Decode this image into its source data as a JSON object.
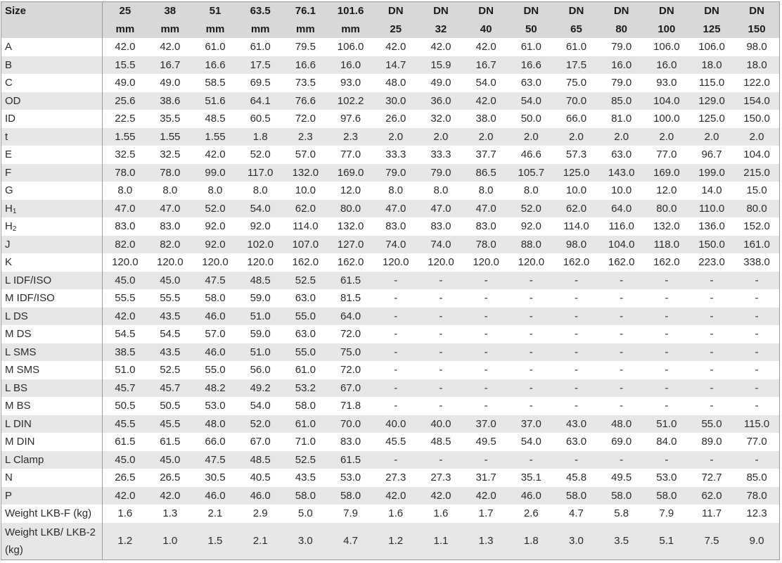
{
  "table": {
    "size_label": "Size",
    "header_top": [
      "25",
      "38",
      "51",
      "63.5",
      "76.1",
      "101.6",
      "DN",
      "DN",
      "DN",
      "DN",
      "DN",
      "DN",
      "DN",
      "DN",
      "DN"
    ],
    "header_bottom": [
      "mm",
      "mm",
      "mm",
      "mm",
      "mm",
      "mm",
      "25",
      "32",
      "40",
      "50",
      "65",
      "80",
      "100",
      "125",
      "150"
    ],
    "rows": [
      {
        "label": "A",
        "values": [
          "42.0",
          "42.0",
          "61.0",
          "61.0",
          "79.5",
          "106.0",
          "42.0",
          "42.0",
          "42.0",
          "61.0",
          "61.0",
          "79.0",
          "106.0",
          "106.0",
          "98.0"
        ]
      },
      {
        "label": "B",
        "values": [
          "15.5",
          "16.7",
          "16.6",
          "17.5",
          "16.6",
          "16.0",
          "14.7",
          "15.9",
          "16.7",
          "16.6",
          "17.5",
          "16.0",
          "16.0",
          "18.0",
          "18.0"
        ]
      },
      {
        "label": "C",
        "values": [
          "49.0",
          "49.0",
          "58.5",
          "69.5",
          "73.5",
          "93.0",
          "48.0",
          "49.0",
          "54.0",
          "63.0",
          "75.0",
          "79.0",
          "93.0",
          "115.0",
          "122.0"
        ]
      },
      {
        "label": "OD",
        "values": [
          "25.6",
          "38.6",
          "51.6",
          "64.1",
          "76.6",
          "102.2",
          "30.0",
          "36.0",
          "42.0",
          "54.0",
          "70.0",
          "85.0",
          "104.0",
          "129.0",
          "154.0"
        ]
      },
      {
        "label": "ID",
        "values": [
          "22.5",
          "35.5",
          "48.5",
          "60.5",
          "72.0",
          "97.6",
          "26.0",
          "32.0",
          "38.0",
          "50.0",
          "66.0",
          "81.0",
          "100.0",
          "125.0",
          "150.0"
        ]
      },
      {
        "label": "t",
        "values": [
          "1.55",
          "1.55",
          "1.55",
          "1.8",
          "2.3",
          "2.3",
          "2.0",
          "2.0",
          "2.0",
          "2.0",
          "2.0",
          "2.0",
          "2.0",
          "2.0",
          "2.0"
        ]
      },
      {
        "label": "E",
        "values": [
          "32.5",
          "32.5",
          "42.0",
          "52.0",
          "57.0",
          "77.0",
          "33.3",
          "33.3",
          "37.7",
          "46.6",
          "57.3",
          "63.0",
          "77.0",
          "96.7",
          "104.0"
        ]
      },
      {
        "label": "F",
        "values": [
          "78.0",
          "78.0",
          "99.0",
          "117.0",
          "132.0",
          "169.0",
          "79.0",
          "79.0",
          "86.5",
          "105.7",
          "125.0",
          "143.0",
          "169.0",
          "199.0",
          "215.0"
        ]
      },
      {
        "label": "G",
        "values": [
          "8.0",
          "8.0",
          "8.0",
          "8.0",
          "10.0",
          "12.0",
          "8.0",
          "8.0",
          "8.0",
          "8.0",
          "10.0",
          "10.0",
          "12.0",
          "14.0",
          "15.0"
        ]
      },
      {
        "label": "H",
        "sub": "1",
        "values": [
          "47.0",
          "47.0",
          "52.0",
          "54.0",
          "62.0",
          "80.0",
          "47.0",
          "47.0",
          "47.0",
          "52.0",
          "62.0",
          "64.0",
          "80.0",
          "110.0",
          "80.0"
        ]
      },
      {
        "label": "H",
        "sub": "2",
        "values": [
          "83.0",
          "83.0",
          "92.0",
          "92.0",
          "114.0",
          "132.0",
          "83.0",
          "83.0",
          "83.0",
          "92.0",
          "114.0",
          "116.0",
          "132.0",
          "136.0",
          "152.0"
        ]
      },
      {
        "label": "J",
        "values": [
          "82.0",
          "82.0",
          "92.0",
          "102.0",
          "107.0",
          "127.0",
          "74.0",
          "74.0",
          "78.0",
          "88.0",
          "98.0",
          "104.0",
          "118.0",
          "150.0",
          "161.0"
        ]
      },
      {
        "label": "K",
        "values": [
          "120.0",
          "120.0",
          "120.0",
          "120.0",
          "162.0",
          "162.0",
          "120.0",
          "120.0",
          "120.0",
          "120.0",
          "162.0",
          "162.0",
          "162.0",
          "223.0",
          "338.0"
        ]
      },
      {
        "label": "L IDF/ISO",
        "values": [
          "45.0",
          "45.0",
          "47.5",
          "48.5",
          "52.5",
          "61.5",
          "-",
          "-",
          "-",
          "-",
          "-",
          "-",
          "-",
          "-",
          "-"
        ]
      },
      {
        "label": "M IDF/ISO",
        "values": [
          "55.5",
          "55.5",
          "58.0",
          "59.0",
          "63.0",
          "81.5",
          "-",
          "-",
          "-",
          "-",
          "-",
          "-",
          "-",
          "-",
          "-"
        ]
      },
      {
        "label": "L DS",
        "values": [
          "42.0",
          "43.5",
          "46.0",
          "51.0",
          "55.0",
          "64.0",
          "-",
          "-",
          "-",
          "-",
          "-",
          "-",
          "-",
          "-",
          "-"
        ]
      },
      {
        "label": "M DS",
        "values": [
          "54.5",
          "54.5",
          "57.0",
          "59.0",
          "63.0",
          "72.0",
          "-",
          "-",
          "-",
          "-",
          "-",
          "-",
          "-",
          "-",
          "-"
        ]
      },
      {
        "label": "L SMS",
        "values": [
          "38.5",
          "43.5",
          "46.0",
          "51.0",
          "55.0",
          "75.0",
          "-",
          "-",
          "-",
          "-",
          "-",
          "-",
          "-",
          "-",
          "-"
        ]
      },
      {
        "label": "M SMS",
        "values": [
          "51.0",
          "52.5",
          "55.0",
          "56.0",
          "61.0",
          "72.0",
          "-",
          "-",
          "-",
          "-",
          "-",
          "-",
          "-",
          "-",
          "-"
        ]
      },
      {
        "label": "L BS",
        "values": [
          "45.7",
          "45.7",
          "48.2",
          "49.2",
          "53.2",
          "67.0",
          "-",
          "-",
          "-",
          "-",
          "-",
          "-",
          "-",
          "-",
          "-"
        ]
      },
      {
        "label": "M BS",
        "values": [
          "50.5",
          "50.5",
          "53.0",
          "54.0",
          "58.0",
          "71.8",
          "-",
          "-",
          "-",
          "-",
          "-",
          "-",
          "-",
          "-",
          "-"
        ]
      },
      {
        "label": "L DIN",
        "values": [
          "45.5",
          "45.5",
          "48.0",
          "52.0",
          "61.0",
          "70.0",
          "40.0",
          "40.0",
          "37.0",
          "37.0",
          "43.0",
          "48.0",
          "51.0",
          "55.0",
          "115.0"
        ]
      },
      {
        "label": "M DIN",
        "values": [
          "61.5",
          "61.5",
          "66.0",
          "67.0",
          "71.0",
          "83.0",
          "45.5",
          "48.5",
          "49.5",
          "54.0",
          "63.0",
          "69.0",
          "84.0",
          "89.0",
          "77.0"
        ]
      },
      {
        "label": "L Clamp",
        "values": [
          "45.0",
          "45.0",
          "47.5",
          "48.5",
          "52.5",
          "61.5",
          "-",
          "-",
          "-",
          "-",
          "-",
          "-",
          "-",
          "-",
          "-"
        ]
      },
      {
        "label": "N",
        "values": [
          "26.5",
          "26.5",
          "30.5",
          "40.5",
          "43.5",
          "53.0",
          "27.3",
          "27.3",
          "31.7",
          "35.1",
          "45.8",
          "49.5",
          "53.0",
          "72.7",
          "85.0"
        ]
      },
      {
        "label": "P",
        "values": [
          "42.0",
          "42.0",
          "46.0",
          "46.0",
          "58.0",
          "58.0",
          "42.0",
          "42.0",
          "42.0",
          "46.0",
          "58.0",
          "58.0",
          "58.0",
          "62.0",
          "78.0"
        ]
      },
      {
        "label": "Weight LKB-F (kg)",
        "values": [
          "1.6",
          "1.3",
          "2.1",
          "2.9",
          "5.0",
          "7.9",
          "1.6",
          "1.6",
          "1.7",
          "2.6",
          "4.7",
          "5.8",
          "7.9",
          "11.7",
          "12.3"
        ]
      },
      {
        "label": "Weight  LKB/ LKB-2 (kg)",
        "tall": true,
        "values": [
          "1.2",
          "1.0",
          "1.5",
          "2.1",
          "3.0",
          "4.7",
          "1.2",
          "1.1",
          "1.3",
          "1.8",
          "3.0",
          "3.5",
          "5.1",
          "7.5",
          "9.0"
        ]
      }
    ]
  }
}
